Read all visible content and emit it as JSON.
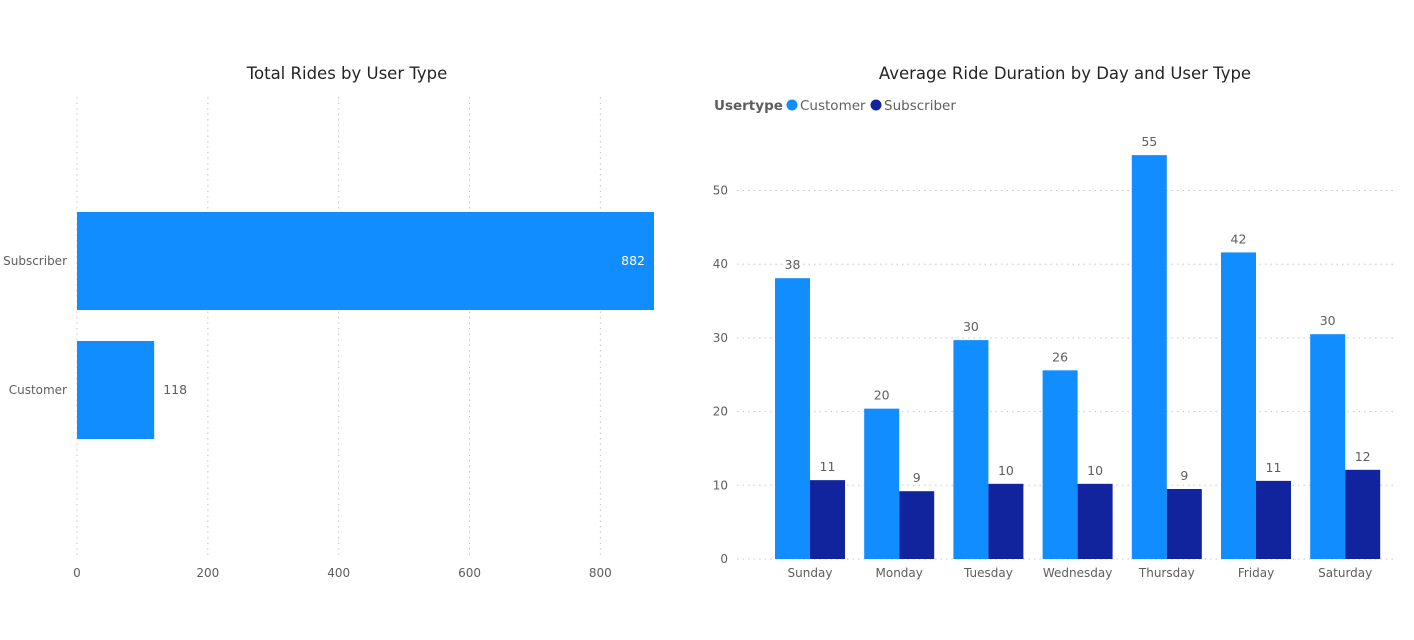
{
  "chart_data": [
    {
      "type": "bar",
      "orientation": "horizontal",
      "title": "Total Rides by User Type",
      "categories": [
        "Subscriber",
        "Customer"
      ],
      "values": [
        882,
        118
      ],
      "value_labels": [
        "882",
        "118"
      ],
      "xticks": [
        0,
        200,
        400,
        600,
        800
      ],
      "xtick_labels": [
        "0",
        "200",
        "400",
        "600",
        "800"
      ],
      "xlim": [
        0,
        882
      ],
      "grid": "vertical-dotted",
      "color": "#118dff"
    },
    {
      "type": "bar",
      "orientation": "vertical",
      "grouped": true,
      "title": "Average Ride Duration by Day and User Type",
      "legend_title": "Usertype",
      "legend_placement": "top-left",
      "categories": [
        "Sunday",
        "Monday",
        "Tuesday",
        "Wednesday",
        "Thursday",
        "Friday",
        "Saturday"
      ],
      "series": [
        {
          "name": "Customer",
          "color": "#118dff",
          "values": [
            38.1,
            20.4,
            29.7,
            25.6,
            54.8,
            41.6,
            30.5
          ],
          "labels": [
            "38",
            "20",
            "30",
            "26",
            "55",
            "42",
            "30"
          ]
        },
        {
          "name": "Subscriber",
          "color": "#12239e",
          "values": [
            10.7,
            9.2,
            10.2,
            10.2,
            9.5,
            10.6,
            12.1
          ],
          "labels": [
            "11",
            "9",
            "10",
            "10",
            "9",
            "11",
            "12"
          ]
        }
      ],
      "yticks": [
        0,
        10,
        20,
        30,
        40,
        50
      ],
      "ytick_labels": [
        "0",
        "10",
        "20",
        "30",
        "40",
        "50"
      ],
      "ylim": [
        0,
        60
      ],
      "grid": "horizontal-dotted"
    }
  ]
}
